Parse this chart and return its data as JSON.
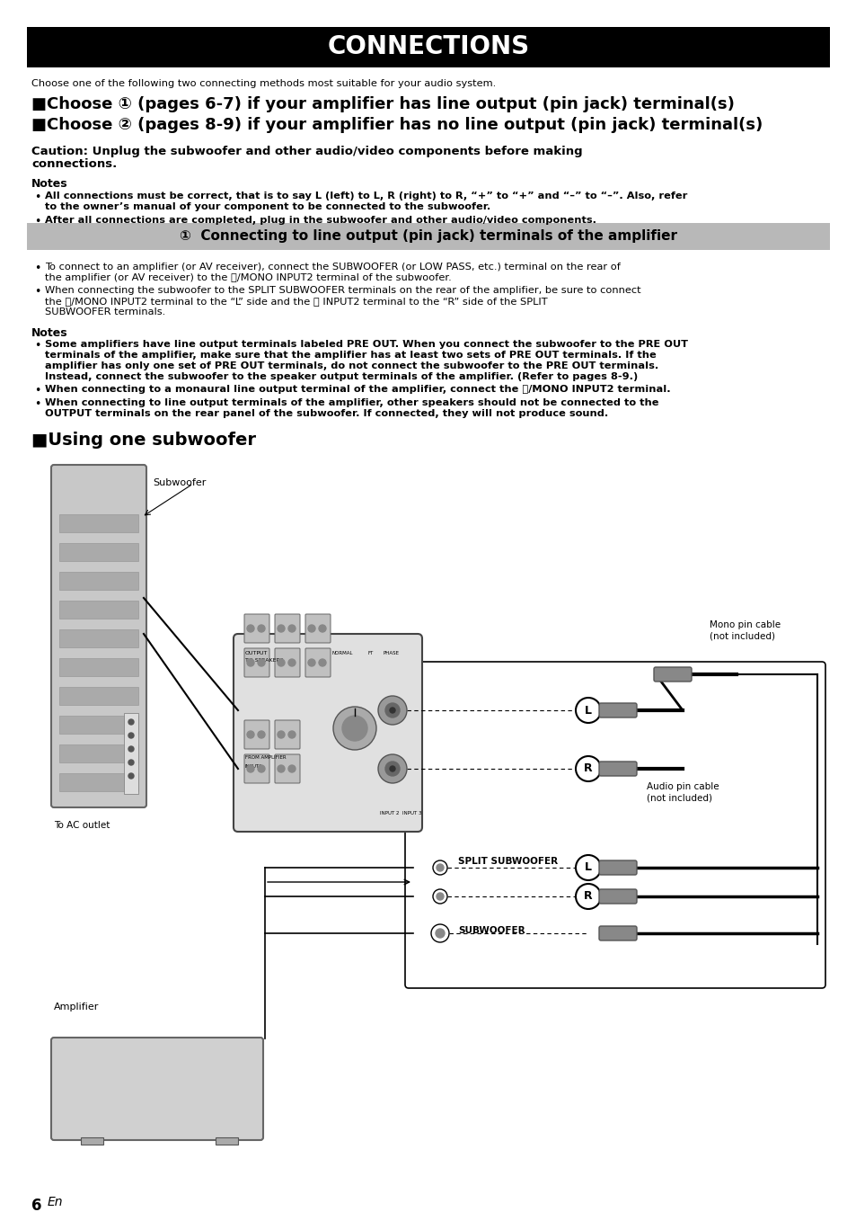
{
  "title": "CONNECTIONS",
  "title_bg": "#000000",
  "title_fg": "#ffffff",
  "page_bg": "#ffffff",
  "subtitle_line1": "■Choose ① (pages 6-7) if your amplifier has line output (pin jack) terminal(s)",
  "subtitle_line2": "■Choose ② (pages 8-9) if your amplifier has no line output (pin jack) terminal(s)",
  "intro_text": "Choose one of the following two connecting methods most suitable for your audio system.",
  "caution_line1": "Caution: Unplug the subwoofer and other audio/video components before making",
  "caution_line2": "connections.",
  "notes_label": "Notes",
  "note1": "All connections must be correct, that is to say L (left) to L, R (right) to R, “+” to “+” and “–” to “–”. Also, refer",
  "note1b": "to the owner’s manual of your component to be connected to the subwoofer.",
  "note2": "After all connections are completed, plug in the subwoofer and other audio/video components.",
  "section_header": "①  Connecting to line output (pin jack) terminals of the amplifier",
  "section_header_bg": "#b0b0b0",
  "bullet1a": "To connect to an amplifier (or AV receiver), connect the SUBWOOFER (or LOW PASS, etc.) terminal on the rear of",
  "bullet1b": "the amplifier (or AV receiver) to the Ⓛ/MONO INPUT2 terminal of the subwoofer.",
  "bullet2a": "When connecting the subwoofer to the SPLIT SUBWOOFER terminals on the rear of the amplifier, be sure to connect",
  "bullet2b": "the Ⓛ/MONO INPUT2 terminal to the “L” side and the Ⓡ INPUT2 terminal to the “R” side of the SPLIT",
  "bullet2c": "SUBWOOFER terminals.",
  "notes2_label": "Notes",
  "note3a": "Some amplifiers have line output terminals labeled PRE OUT. When you connect the subwoofer to the PRE OUT",
  "note3b": "terminals of the amplifier, make sure that the amplifier has at least two sets of PRE OUT terminals. If the",
  "note3c": "amplifier has only one set of PRE OUT terminals, do not connect the subwoofer to the PRE OUT terminals.",
  "note3d": "Instead, connect the subwoofer to the speaker output terminals of the amplifier. (Refer to pages 8-9.)",
  "note4": "When connecting to a monaural line output terminal of the amplifier, connect the Ⓛ/MONO INPUT2 terminal.",
  "note5a": "When connecting to line output terminals of the amplifier, other speakers should not be connected to the",
  "note5b": "OUTPUT terminals on the rear panel of the subwoofer. If connected, they will not produce sound.",
  "subwoofer_section": "■Using one subwoofer",
  "label_subwoofer": "Subwoofer",
  "label_to_ac": "To AC outlet",
  "label_amplifier": "Amplifier",
  "label_mono_cable1": "Mono pin cable",
  "label_mono_cable2": "(not included)",
  "label_audio_cable1": "Audio pin cable",
  "label_audio_cable2": "(not included)",
  "label_split_sub": "SPLIT SUBWOOFER",
  "label_subwoofer2": "SUBWOOFER",
  "page_number": "6",
  "page_en": "En"
}
